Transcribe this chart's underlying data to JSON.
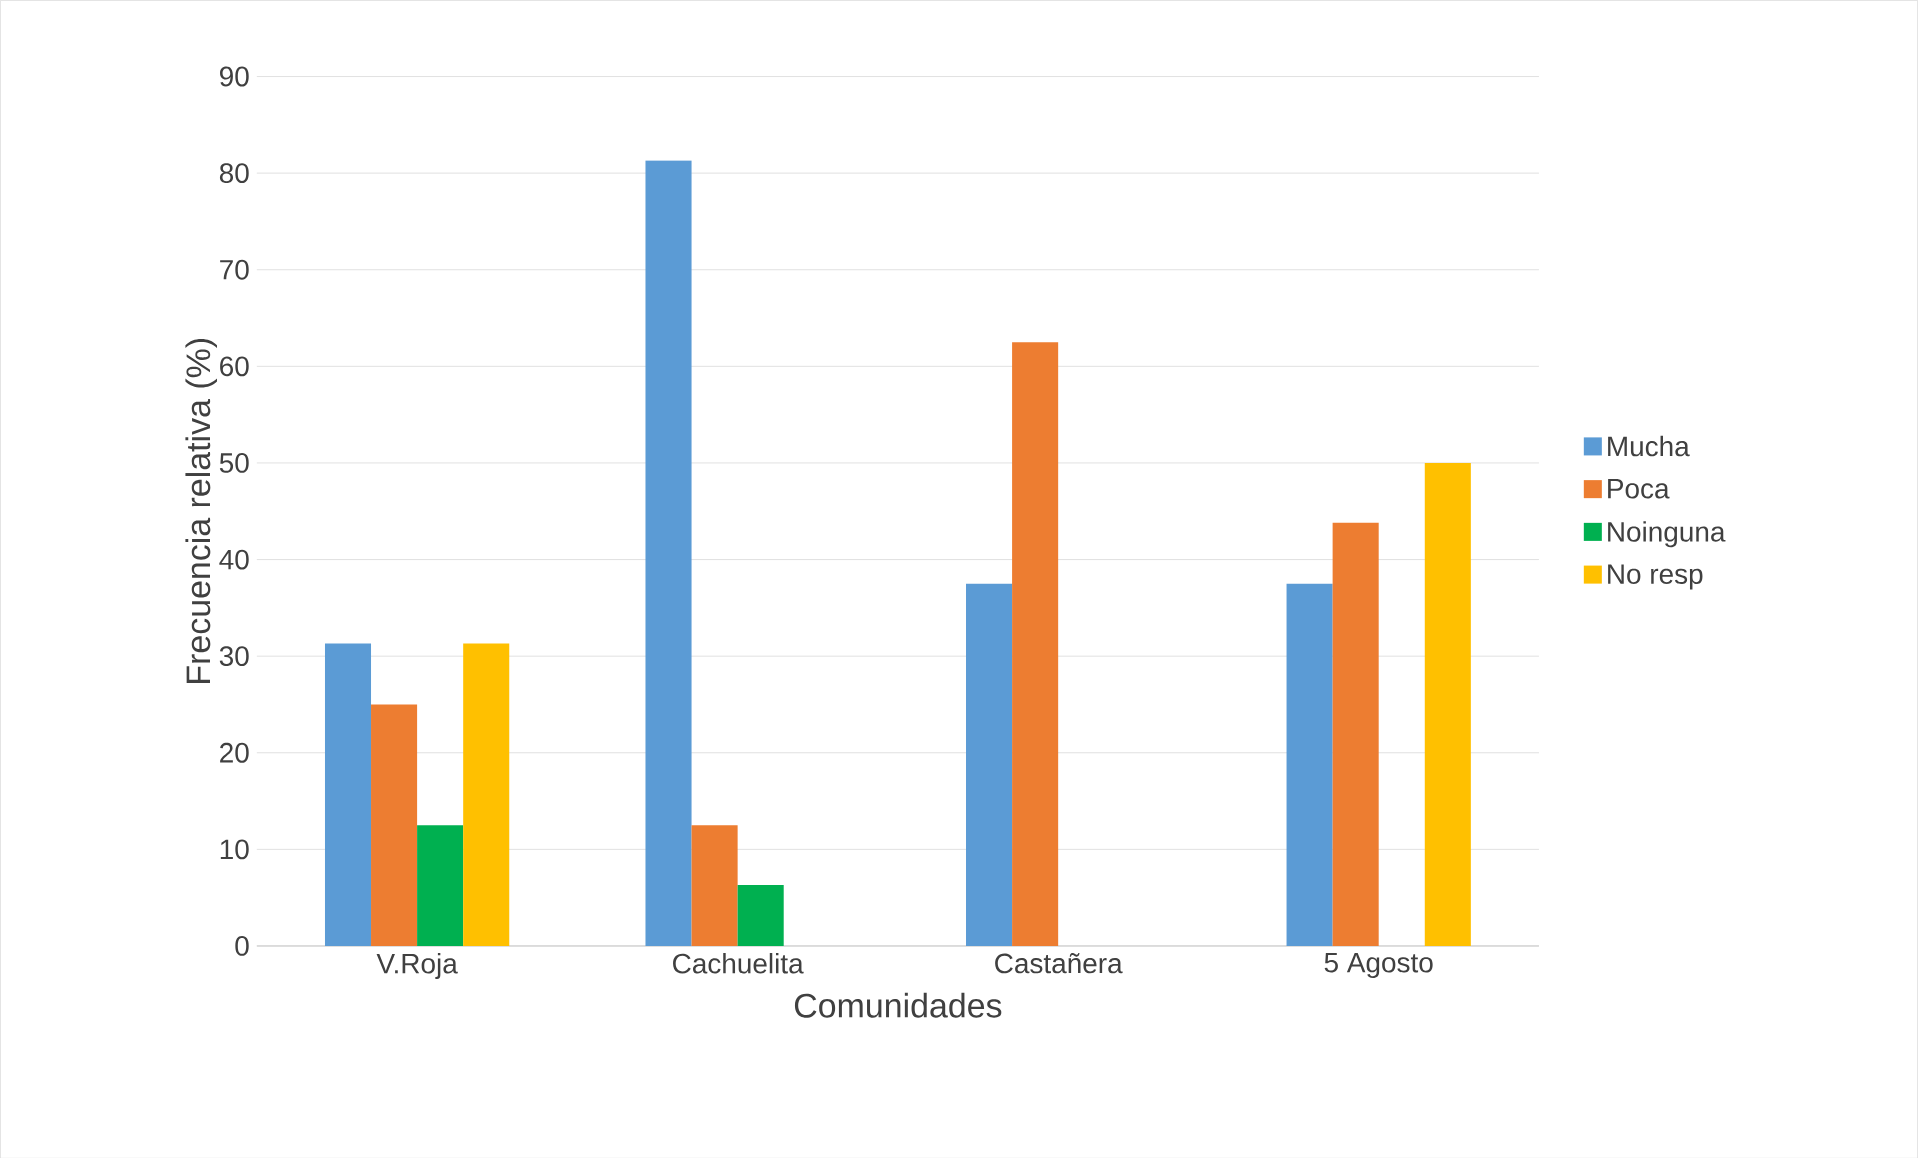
{
  "chart_data": {
    "type": "bar",
    "xlabel": "Comunidades",
    "ylabel": "Frecuencia relativa (%)",
    "categories": [
      "V.Roja",
      "Cachuelita",
      "Castañera",
      "5 Agosto"
    ],
    "series": [
      {
        "name": "Mucha",
        "color": "#5b9bd5",
        "values": [
          31.3,
          81.3,
          37.5,
          37.5
        ]
      },
      {
        "name": "Poca",
        "color": "#ed7d31",
        "values": [
          25,
          12.5,
          62.5,
          43.8
        ]
      },
      {
        "name": "Noinguna",
        "color": "#00b050",
        "values": [
          12.5,
          6.3,
          0,
          0
        ]
      },
      {
        "name": "No resp",
        "color": "#ffc000",
        "values": [
          31.3,
          0,
          0,
          50
        ]
      }
    ],
    "ylim": [
      0,
      90
    ],
    "yticks": [
      0,
      10,
      20,
      30,
      40,
      50,
      60,
      70,
      80,
      90
    ],
    "grid": "y",
    "legend": "right"
  }
}
